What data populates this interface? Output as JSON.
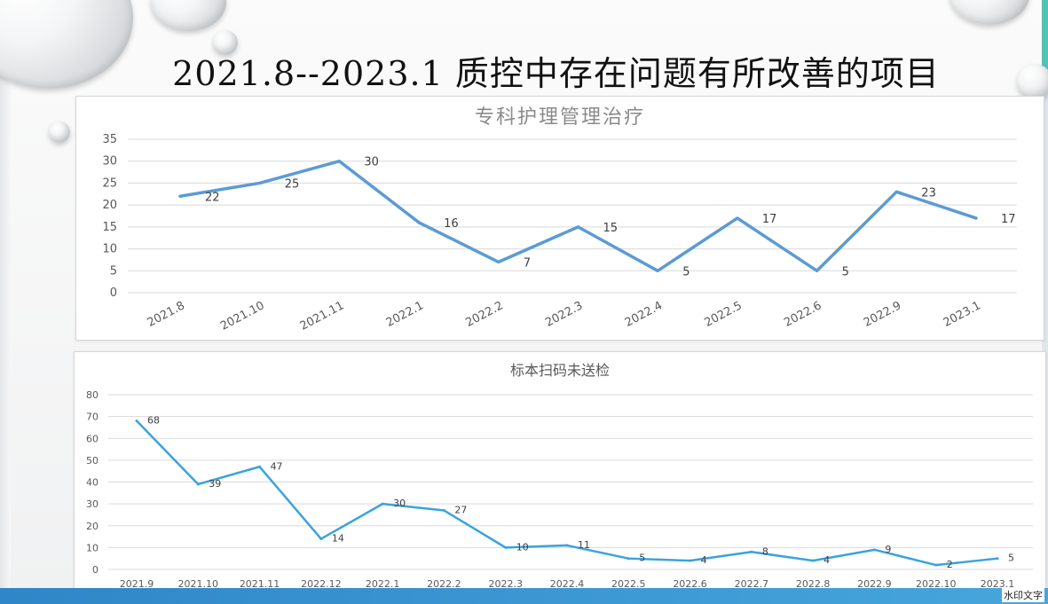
{
  "slide": {
    "title": "2021.8--2023.1  质控中存在问题有所改善的项目",
    "watermark": "水印文字",
    "colors": {
      "accent": "#52c4b5",
      "line1": "#5b9bd5",
      "line2": "#3ba3dc",
      "bottom_bar": "#2f86c8"
    }
  },
  "chart_data": [
    {
      "type": "line",
      "title": "专科护理管理治疗",
      "categories": [
        "2021.8",
        "2021.10",
        "2021.11",
        "2022.1",
        "2022.2",
        "2022.3",
        "2022.4",
        "2022.5",
        "2022.6",
        "2022.9",
        "2023.1"
      ],
      "values": [
        22,
        25,
        30,
        16,
        7,
        15,
        5,
        17,
        5,
        23,
        17
      ],
      "xlabel": "",
      "ylabel": "",
      "ylim": [
        0,
        35
      ],
      "yticks": [
        0,
        5,
        10,
        15,
        20,
        25,
        30,
        35
      ],
      "grid": true,
      "legend": "none"
    },
    {
      "type": "line",
      "title": "标本扫码未送检",
      "categories": [
        "2021.9",
        "2021.10",
        "2021.11",
        "2022.12",
        "2022.1",
        "2022.2",
        "2022.3",
        "2022.4",
        "2022.5",
        "2022.6",
        "2022.7",
        "2022.8",
        "2022.9",
        "2022.10",
        "2023.1"
      ],
      "values": [
        68,
        39,
        47,
        14,
        30,
        27,
        10,
        11,
        5,
        4,
        8,
        4,
        9,
        2,
        5
      ],
      "xlabel": "",
      "ylabel": "",
      "ylim": [
        0,
        80
      ],
      "yticks": [
        0,
        10,
        20,
        30,
        40,
        50,
        60,
        70,
        80
      ],
      "grid": true,
      "legend": "none"
    }
  ]
}
